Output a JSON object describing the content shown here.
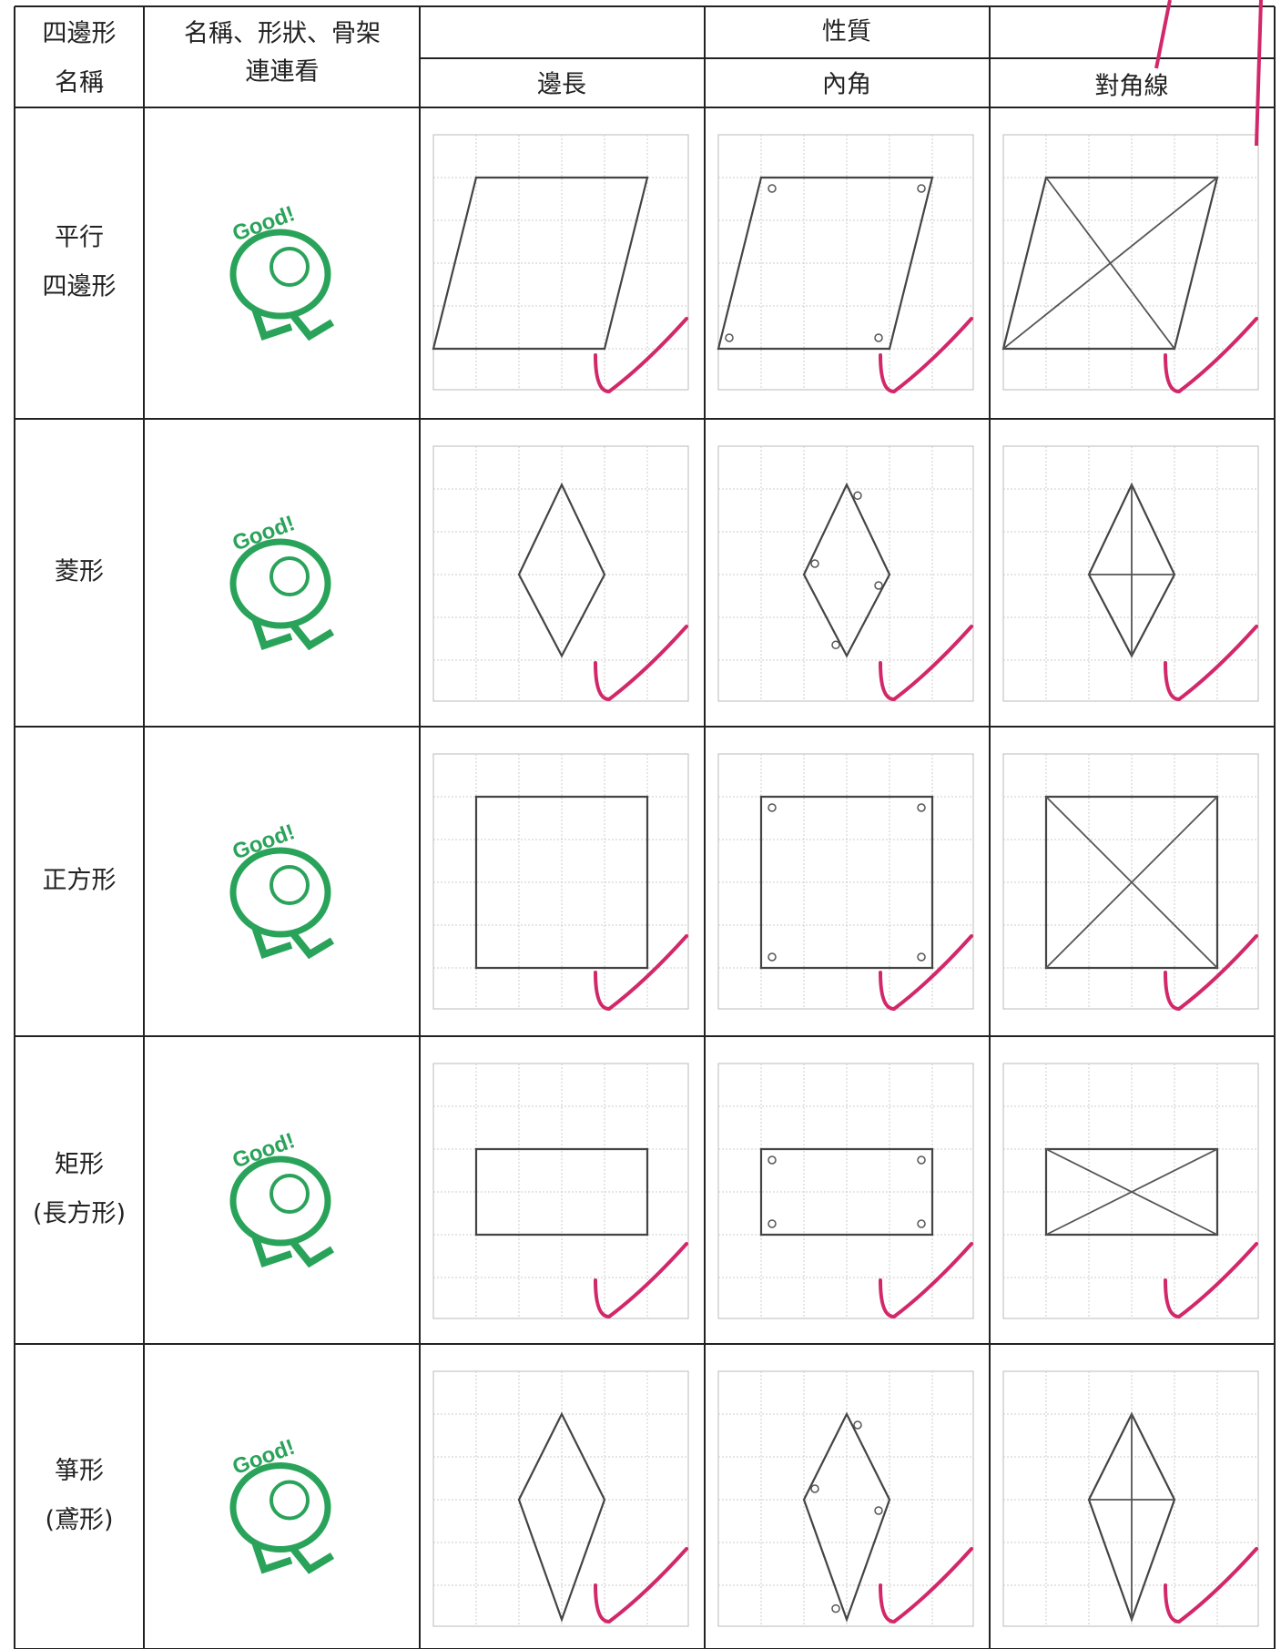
{
  "table": {
    "header": {
      "name": [
        "四邊形",
        "名稱"
      ],
      "match": [
        "名稱、形狀、骨架",
        "連連看"
      ],
      "properties": "性質",
      "columns": [
        "邊長",
        "內角",
        "對角線"
      ]
    },
    "rows": [
      {
        "name": [
          "平行",
          "四邊形"
        ],
        "stamp": "Good!"
      },
      {
        "name": [
          "菱形"
        ],
        "stamp": "Good!"
      },
      {
        "name": [
          "正方形"
        ],
        "stamp": "Good!"
      },
      {
        "name": [
          "矩形",
          "(長方形)"
        ],
        "stamp": "Good!"
      },
      {
        "name": [
          "箏形",
          "(鳶形)"
        ],
        "stamp": "Good!"
      }
    ]
  }
}
